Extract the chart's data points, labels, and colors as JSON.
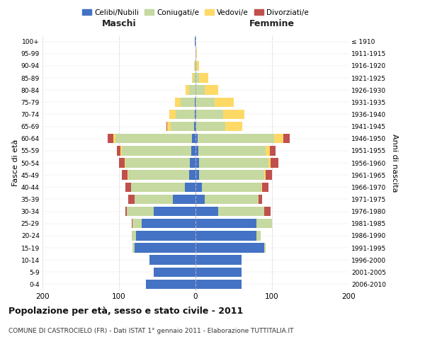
{
  "age_groups": [
    "0-4",
    "5-9",
    "10-14",
    "15-19",
    "20-24",
    "25-29",
    "30-34",
    "35-39",
    "40-44",
    "45-49",
    "50-54",
    "55-59",
    "60-64",
    "65-69",
    "70-74",
    "75-79",
    "80-84",
    "85-89",
    "90-94",
    "95-99",
    "100+"
  ],
  "birth_years": [
    "2006-2010",
    "2001-2005",
    "1996-2000",
    "1991-1995",
    "1986-1990",
    "1981-1985",
    "1976-1980",
    "1971-1975",
    "1966-1970",
    "1961-1965",
    "1956-1960",
    "1951-1955",
    "1946-1950",
    "1941-1945",
    "1936-1940",
    "1931-1935",
    "1926-1930",
    "1921-1925",
    "1916-1920",
    "1911-1915",
    "≤ 1910"
  ],
  "maschi_celibi": [
    65,
    55,
    60,
    80,
    78,
    70,
    55,
    30,
    14,
    8,
    7,
    6,
    5,
    2,
    1,
    1,
    0,
    0,
    0,
    0,
    1
  ],
  "maschi_coniugati": [
    0,
    0,
    0,
    2,
    5,
    12,
    35,
    50,
    70,
    80,
    85,
    90,
    100,
    30,
    25,
    18,
    8,
    3,
    1,
    0,
    0
  ],
  "maschi_vedovi": [
    0,
    0,
    0,
    0,
    0,
    0,
    0,
    0,
    0,
    1,
    1,
    2,
    2,
    5,
    8,
    8,
    5,
    2,
    1,
    0,
    0
  ],
  "maschi_divorziati": [
    0,
    0,
    0,
    0,
    0,
    1,
    2,
    8,
    8,
    7,
    7,
    5,
    8,
    1,
    0,
    0,
    0,
    0,
    0,
    0,
    0
  ],
  "femmine_nubili": [
    60,
    60,
    60,
    90,
    80,
    80,
    30,
    12,
    8,
    5,
    5,
    4,
    3,
    1,
    1,
    0,
    0,
    0,
    0,
    0,
    0
  ],
  "femmine_coniugate": [
    0,
    0,
    0,
    2,
    5,
    20,
    60,
    70,
    78,
    85,
    90,
    88,
    100,
    38,
    35,
    25,
    12,
    5,
    2,
    1,
    0
  ],
  "femmine_vedove": [
    0,
    0,
    0,
    0,
    0,
    0,
    0,
    0,
    1,
    2,
    3,
    5,
    12,
    22,
    28,
    25,
    18,
    12,
    3,
    1,
    0
  ],
  "femmine_divorziate": [
    0,
    0,
    0,
    0,
    0,
    0,
    8,
    5,
    8,
    8,
    10,
    8,
    8,
    0,
    0,
    0,
    0,
    0,
    0,
    0,
    0
  ],
  "color_celibi": "#4472c4",
  "color_coniugati": "#c5d9a0",
  "color_vedovi": "#ffd966",
  "color_divorziati": "#c0504d",
  "xlim": 200,
  "title": "Popolazione per età, sesso e stato civile - 2011",
  "subtitle": "COMUNE DI CASTROCIELO (FR) - Dati ISTAT 1° gennaio 2011 - Elaborazione TUTTITALIA.IT",
  "ylabel_left": "Fasce di età",
  "ylabel_right": "Anni di nascita",
  "label_maschi": "Maschi",
  "label_femmine": "Femmine",
  "legend_labels": [
    "Celibi/Nubili",
    "Coniugati/e",
    "Vedovi/e",
    "Divorziati/e"
  ],
  "bg_color": "#ffffff",
  "grid_color": "#cccccc"
}
